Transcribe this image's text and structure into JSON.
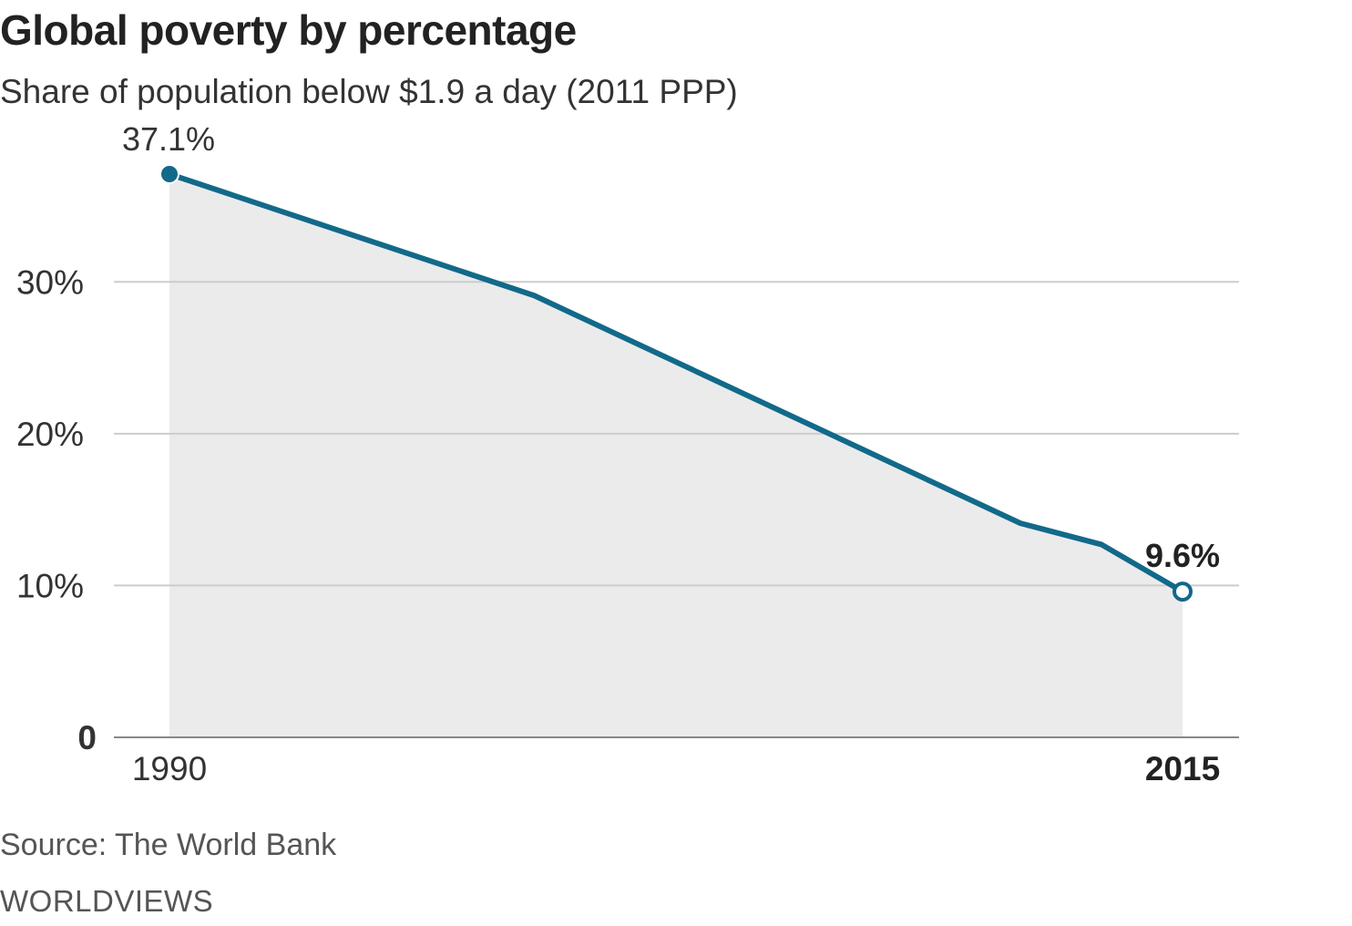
{
  "header": {
    "title": "Global poverty by percentage",
    "subtitle": "Share of population below $1.9 a day (2011 PPP)"
  },
  "footer": {
    "source": "Source: The World Bank",
    "credit": "WORLDVIEWS"
  },
  "colors": {
    "line": "#12698a",
    "area": "#ebebeb",
    "grid": "#cccccc",
    "axis": "#888888",
    "text": "#222222"
  },
  "chart_data": {
    "type": "area",
    "title": "Global poverty by percentage",
    "subtitle": "Share of population below $1.9 a day (2011 PPP)",
    "x": [
      1990,
      1999,
      2011,
      2013,
      2015
    ],
    "y": [
      37.1,
      29.1,
      14.1,
      12.7,
      9.6
    ],
    "xlim": [
      1990,
      2015
    ],
    "ylim": [
      0,
      37.1
    ],
    "y_ticks": [
      0,
      10,
      20,
      30
    ],
    "y_tick_labels": [
      "0",
      "10%",
      "20%",
      "30%"
    ],
    "x_tick_labels": [
      "1990",
      "2015"
    ],
    "annotations": [
      {
        "x": 1990,
        "y": 37.1,
        "label": "37.1%"
      },
      {
        "x": 2015,
        "y": 9.6,
        "label": "9.6%"
      }
    ],
    "grid": true,
    "xlabel": "",
    "ylabel": ""
  }
}
